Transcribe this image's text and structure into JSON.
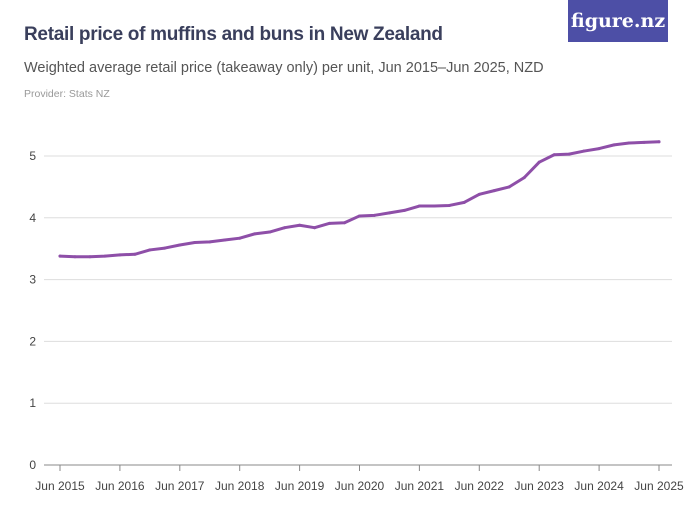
{
  "header": {
    "title": "Retail price of muffins and buns in New Zealand",
    "subtitle": "Weighted average retail price (takeaway only) per unit, Jun 2015–Jun 2025, NZD",
    "provider": "Provider: Stats NZ",
    "logo": "figure.nz"
  },
  "colors": {
    "line": "#8e4fa8",
    "logo_bg": "#4d4fa6",
    "grid": "#dddddd"
  },
  "chart_data": {
    "type": "line",
    "title": "Retail price of muffins and buns in New Zealand",
    "ylim": [
      0,
      5.5
    ],
    "yticks": [
      "0",
      "1",
      "2",
      "3",
      "4",
      "5"
    ],
    "xticks": [
      "Jun 2015",
      "Jun 2016",
      "Jun 2017",
      "Jun 2018",
      "Jun 2019",
      "Jun 2020",
      "Jun 2021",
      "Jun 2022",
      "Jun 2023",
      "Jun 2024",
      "Jun 2025"
    ],
    "grid": true,
    "x": [
      "Jun 2015",
      "Sep 2015",
      "Dec 2015",
      "Mar 2016",
      "Jun 2016",
      "Sep 2016",
      "Dec 2016",
      "Mar 2017",
      "Jun 2017",
      "Sep 2017",
      "Dec 2017",
      "Mar 2018",
      "Jun 2018",
      "Sep 2018",
      "Dec 2018",
      "Mar 2019",
      "Jun 2019",
      "Sep 2019",
      "Dec 2019",
      "Mar 2020",
      "Jun 2020",
      "Sep 2020",
      "Dec 2020",
      "Mar 2021",
      "Jun 2021",
      "Sep 2021",
      "Dec 2021",
      "Mar 2022",
      "Jun 2022",
      "Sep 2022",
      "Dec 2022",
      "Mar 2023",
      "Jun 2023",
      "Sep 2023",
      "Dec 2023",
      "Mar 2024",
      "Jun 2024",
      "Sep 2024",
      "Dec 2024",
      "Mar 2025",
      "Jun 2025"
    ],
    "values": [
      3.38,
      3.37,
      3.37,
      3.38,
      3.4,
      3.41,
      3.48,
      3.51,
      3.56,
      3.6,
      3.61,
      3.64,
      3.67,
      3.74,
      3.77,
      3.84,
      3.88,
      3.84,
      3.91,
      3.92,
      4.03,
      4.04,
      4.08,
      4.12,
      4.19,
      4.19,
      4.2,
      4.25,
      4.38,
      4.44,
      4.5,
      4.65,
      4.9,
      5.02,
      5.03,
      5.08,
      5.12,
      5.18,
      5.21,
      5.22,
      5.23
    ]
  }
}
